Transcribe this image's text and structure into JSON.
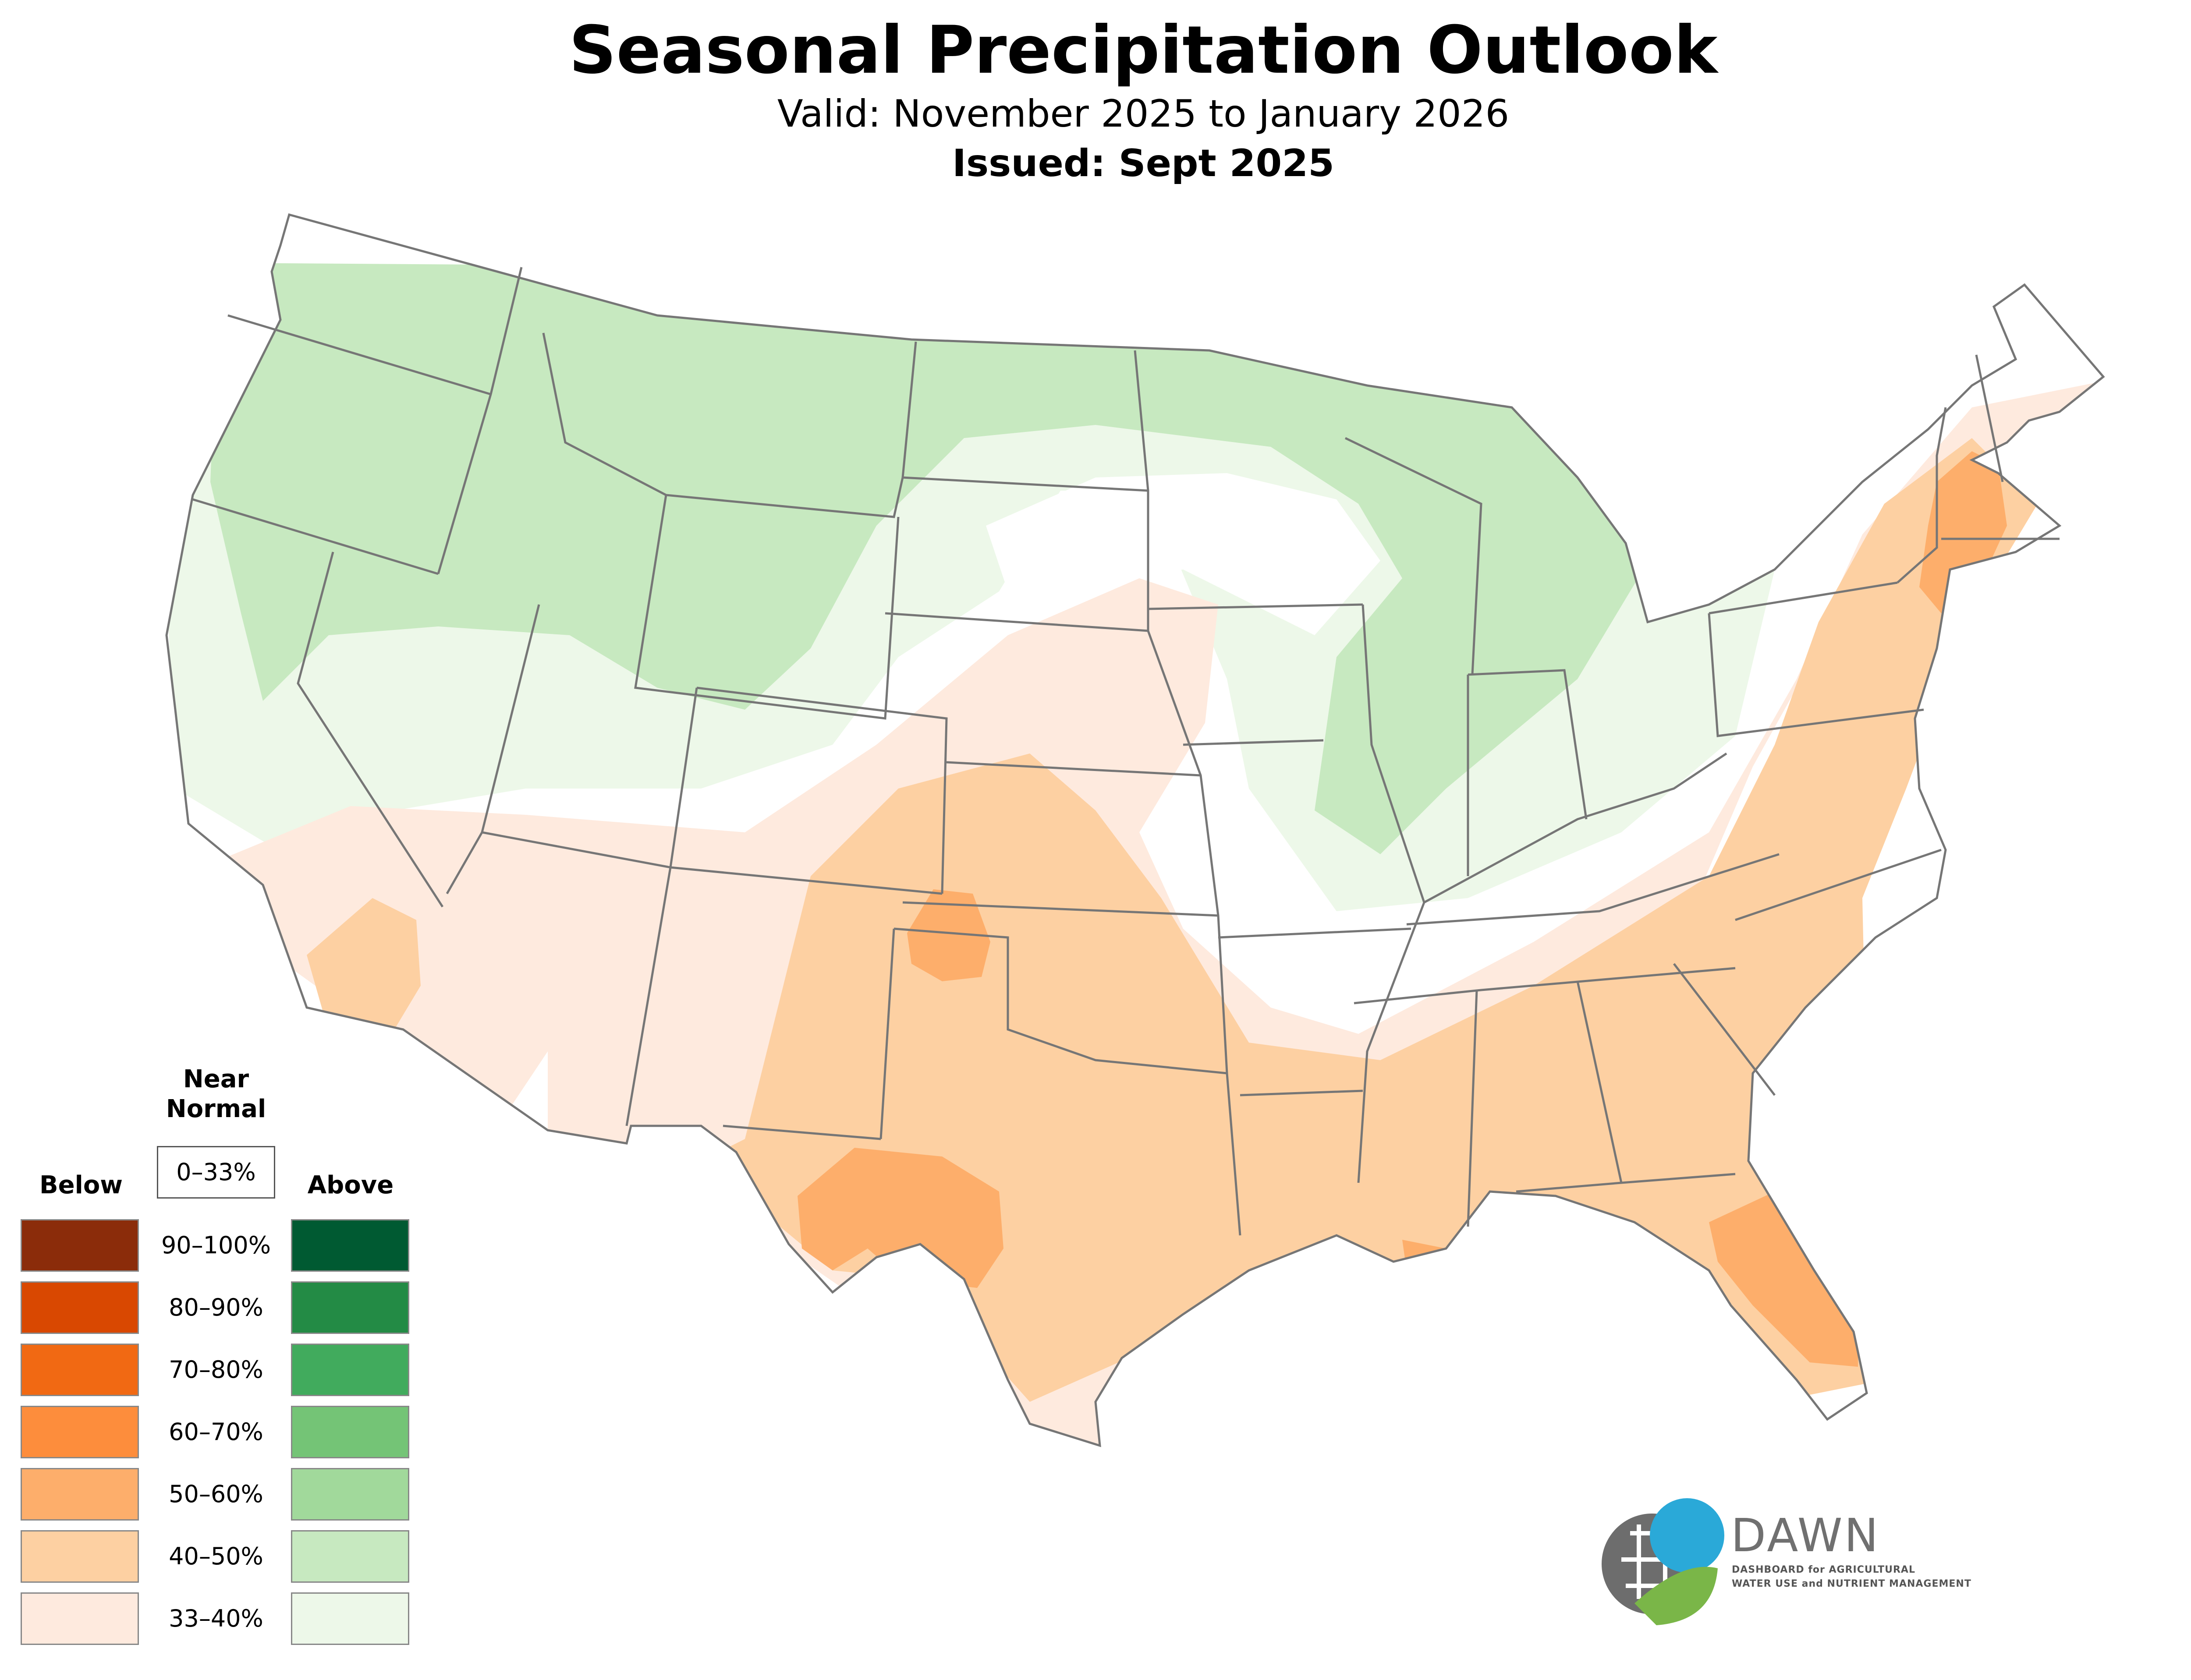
{
  "title": "Seasonal Precipitation Outlook",
  "valid": "Valid: November 2025 to January 2026",
  "issued": "Issued: Sept 2025",
  "legend": {
    "near_normal_title_line1": "Near",
    "near_normal_title_line2": "Normal",
    "near_normal_range": "0–33%",
    "below_title": "Below",
    "above_title": "Above",
    "ranges": [
      "90–100%",
      "80–90%",
      "70–80%",
      "60–70%",
      "50–60%",
      "40–50%",
      "33–40%"
    ],
    "below_colors": [
      "#8b2c0a",
      "#d94801",
      "#f16913",
      "#fd8d3c",
      "#fdae6b",
      "#fdd0a2",
      "#feeade"
    ],
    "above_colors": [
      "#005a32",
      "#238b45",
      "#41ab5d",
      "#74c476",
      "#a1d99b",
      "#c7e9c0",
      "#edf8e9"
    ]
  },
  "logo": {
    "name": "DAWN",
    "tagline_line1": "DASHBOARD for AGRICULTURAL",
    "tagline_line2": "WATER USE and NUTRIENT MANAGEMENT",
    "colors": {
      "blue": "#2aa9d8",
      "green": "#7ab648",
      "gray": "#6d6d6d"
    }
  }
}
